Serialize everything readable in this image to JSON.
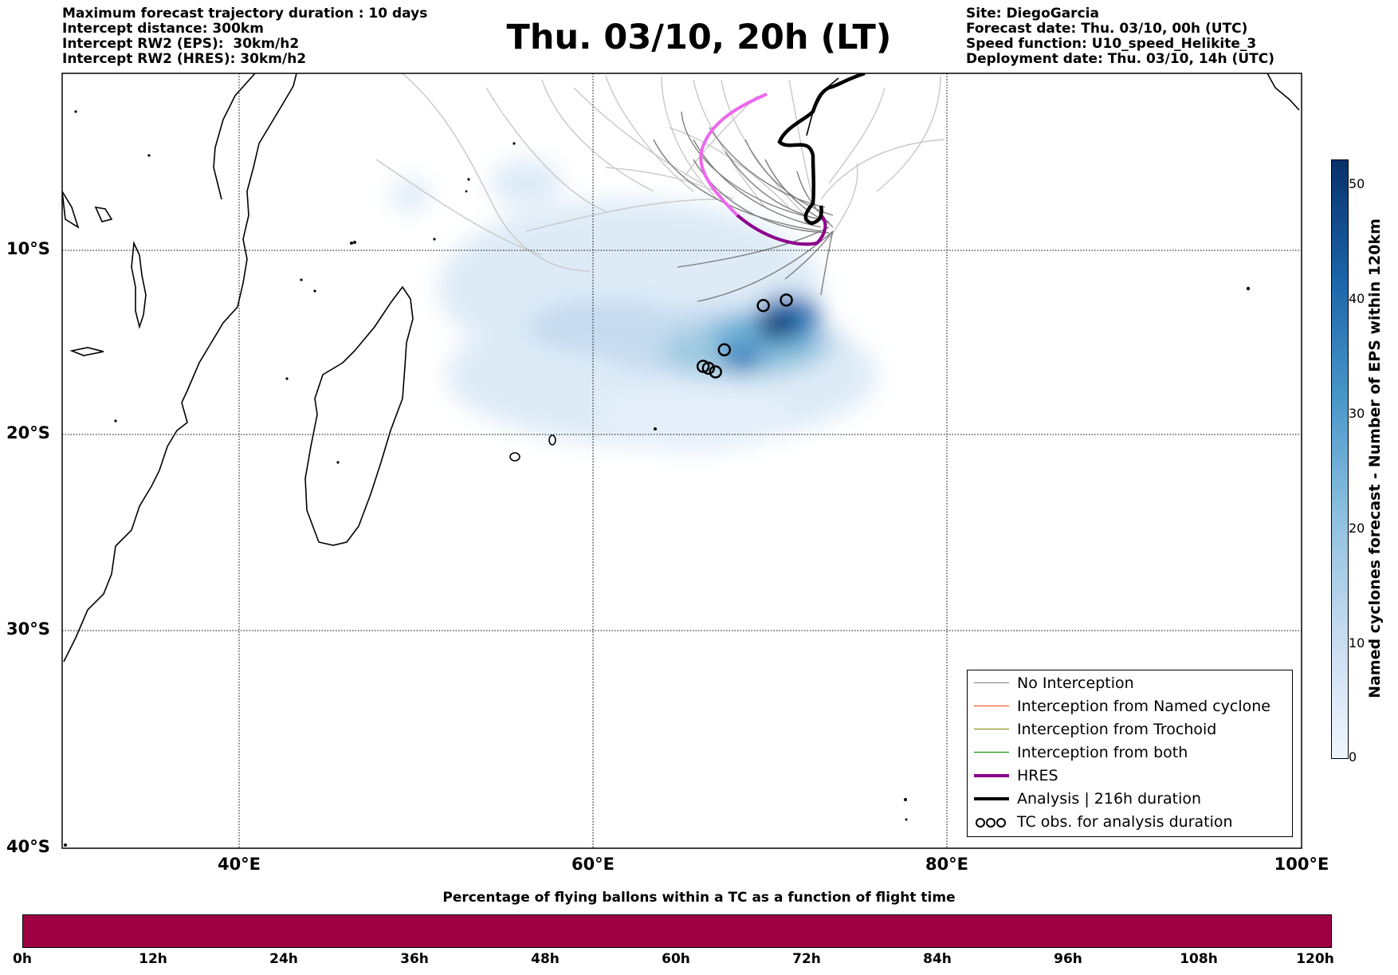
{
  "header_left": [
    "Maximum forecast trajectory duration : 10 days",
    "Intercept distance: 300km",
    "Intercept RW2 (EPS):  30km/h2",
    "Intercept RW2 (HRES): 30km/h2"
  ],
  "title": "Thu. 03/10, 20h (LT)",
  "header_right": [
    "Site: DiegoGarcia",
    "Forecast date: Thu. 03/10, 00h (UTC)",
    "Speed function: U10_speed_Helikite_3",
    "Deployment date: Thu. 03/10, 14h (UTC)"
  ],
  "map": {
    "lon_range": [
      30,
      100
    ],
    "lat_range": [
      -40,
      -1
    ],
    "lon_ticks": [
      "40°E",
      "60°E",
      "80°E",
      "100°E"
    ],
    "lat_ticks": [
      "10°S",
      "20°S",
      "30°S",
      "40°S"
    ],
    "grid": "dotted",
    "colors": {
      "no_interception": "#7f7f7f",
      "named_cyclone": "#ff4500",
      "trochoid": "#808000",
      "both": "#008000",
      "hres": "#8b008b",
      "analysis": "#000000",
      "density_max": "#08306b"
    },
    "tc_obs": [
      {
        "lon": 70.9,
        "lat": -12.7
      },
      {
        "lon": 69.6,
        "lat": -13.0
      },
      {
        "lon": 67.4,
        "lat": -15.4
      },
      {
        "lon": 66.2,
        "lat": -16.3
      },
      {
        "lon": 66.5,
        "lat": -16.4
      },
      {
        "lon": 66.9,
        "lat": -16.6
      }
    ]
  },
  "legend": [
    {
      "label": "No Interception",
      "style": "thin",
      "color": "#7f7f7f"
    },
    {
      "label": "Interception from Named cyclone",
      "style": "thin",
      "color": "#ff4500"
    },
    {
      "label": "Interception from Trochoid",
      "style": "thin",
      "color": "#808000"
    },
    {
      "label": "Interception from both",
      "style": "thin",
      "color": "#008000"
    },
    {
      "label": "HRES",
      "style": "thick",
      "color": "#8b008b"
    },
    {
      "label": "Analysis | 216h duration",
      "style": "thick",
      "color": "#000000"
    },
    {
      "label": "TC obs. for analysis duration",
      "style": "symbol",
      "color": "#000000"
    }
  ],
  "colorbar": {
    "label": "Named cyclones forecast - Number of EPS within 120km",
    "range": [
      0,
      52
    ],
    "ticks": [
      "0",
      "10",
      "20",
      "30",
      "40",
      "50"
    ]
  },
  "percentage_bar": {
    "title": "Percentage of flying ballons within a TC as a function of flight time",
    "color": "#9e0142",
    "ticks": [
      "0h",
      "12h",
      "24h",
      "36h",
      "48h",
      "60h",
      "72h",
      "84h",
      "96h",
      "108h",
      "120h"
    ]
  }
}
